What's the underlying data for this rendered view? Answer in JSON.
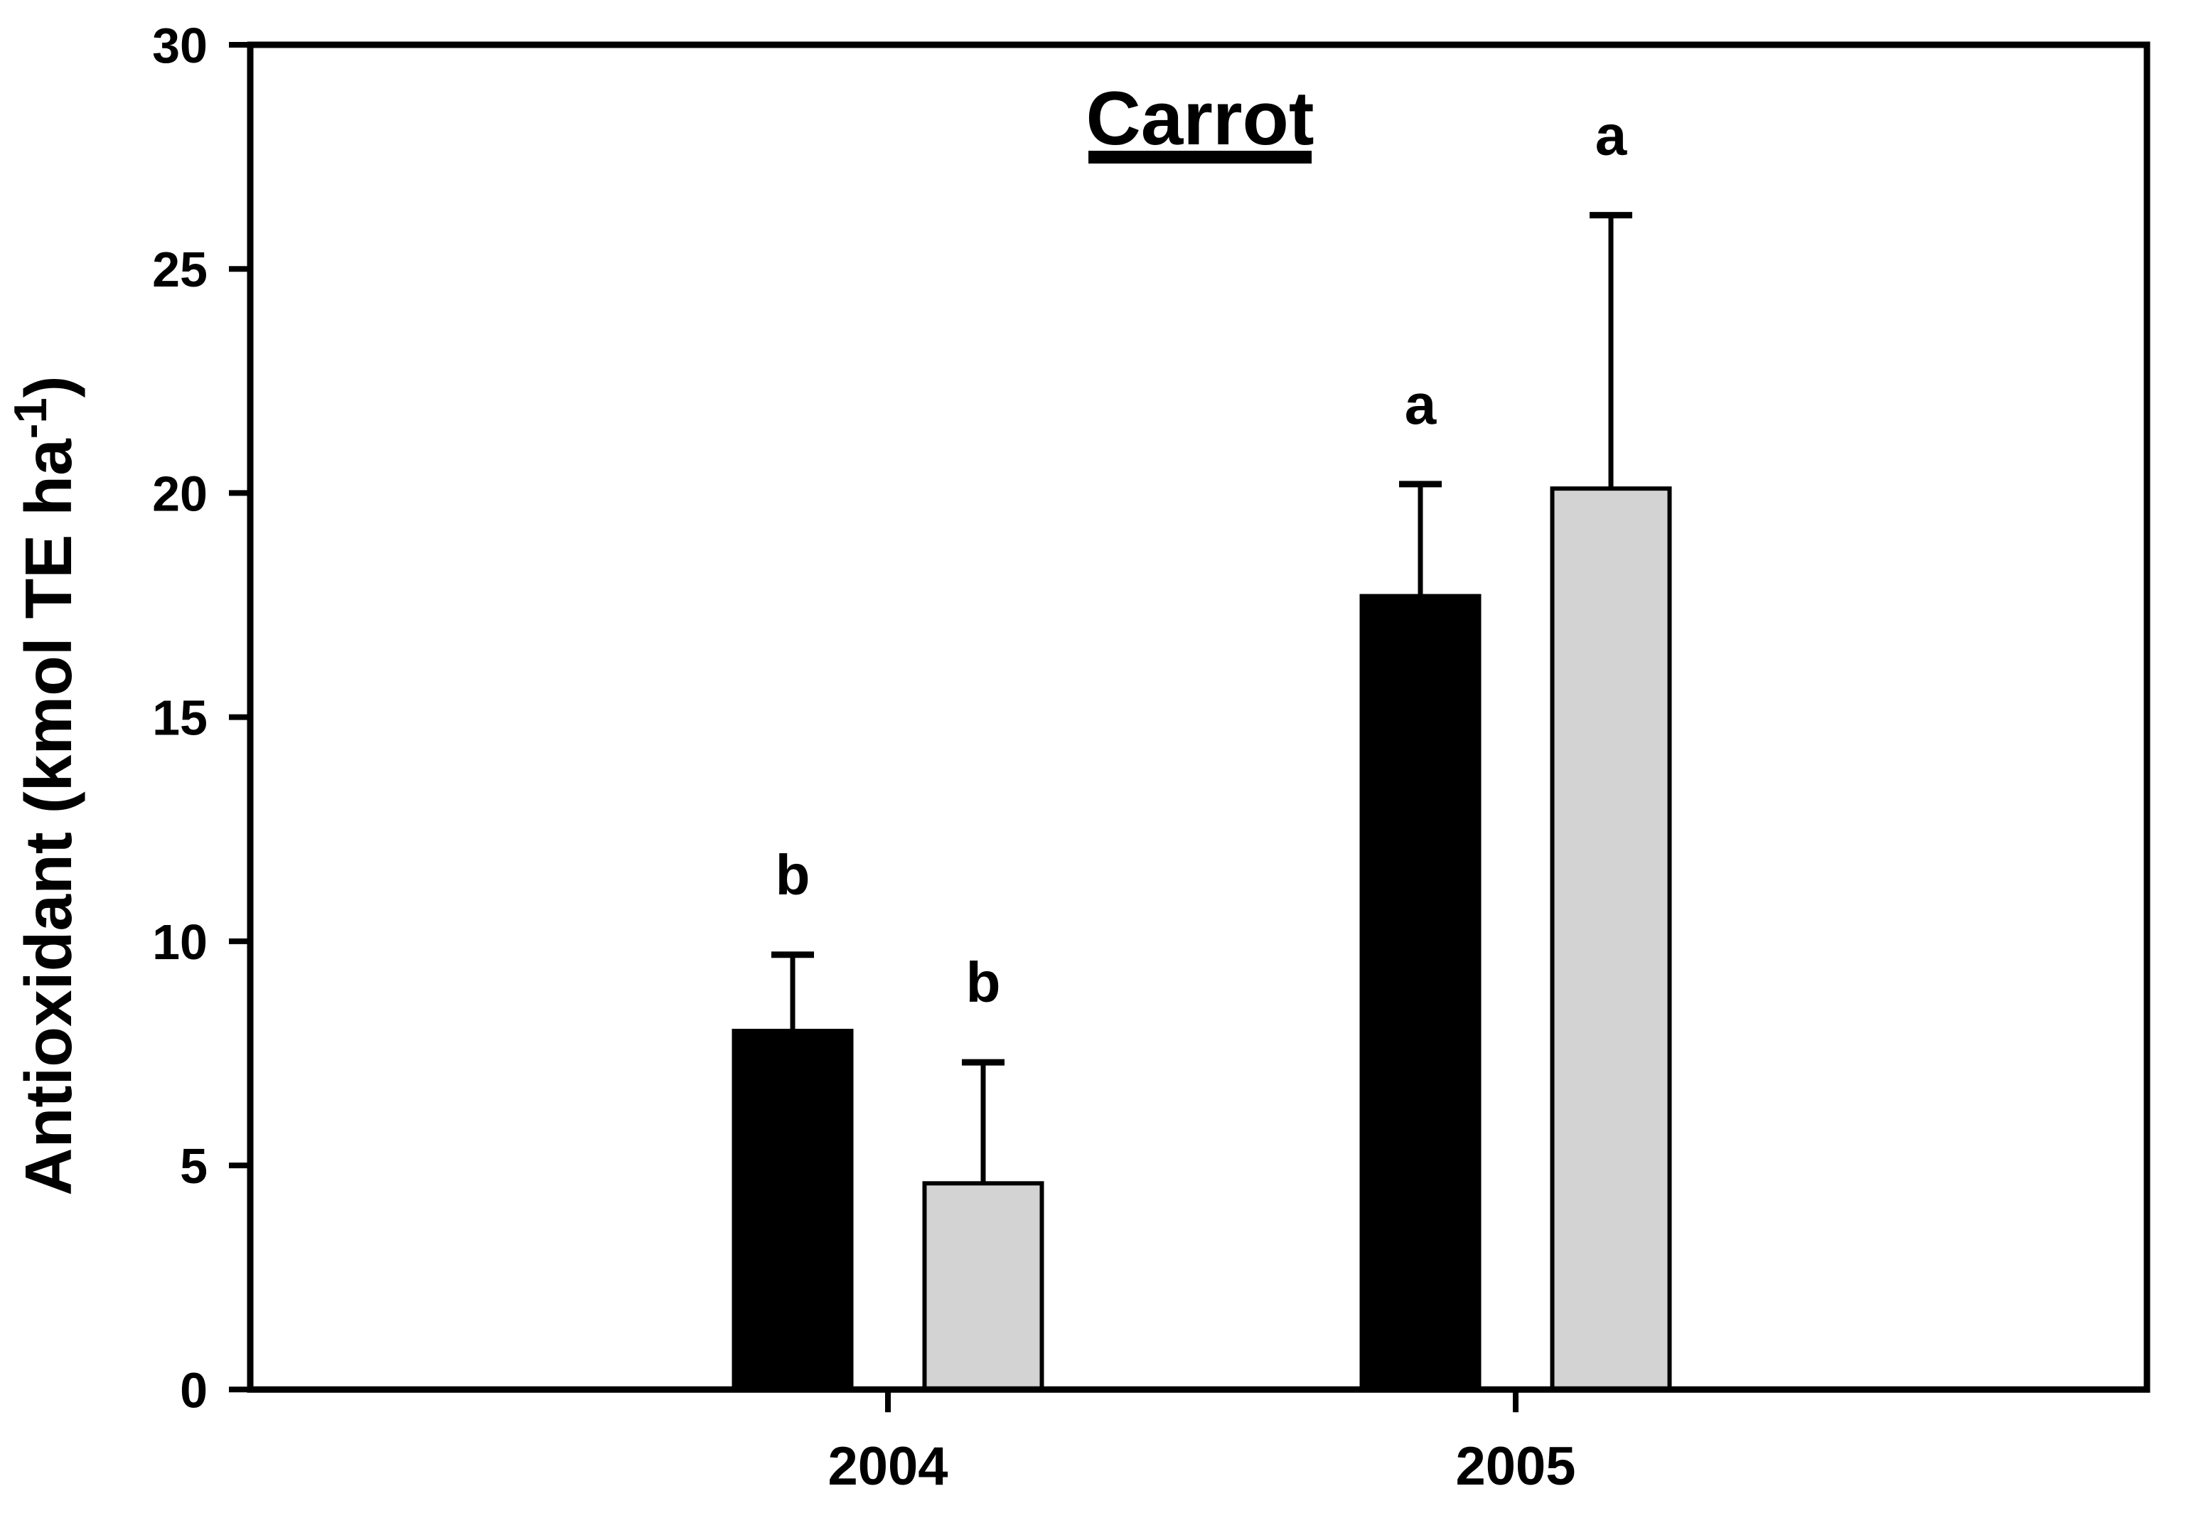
{
  "chart_data": {
    "type": "bar",
    "title": "Carrot",
    "ylabel": "Antioxidant (kmol TE ha⁻¹)",
    "ylabel_parts": {
      "pre": "Antioxidant (kmol TE ha",
      "sup": "-1",
      "post": ")"
    },
    "xlabel": "",
    "categories": [
      "2004",
      "2005"
    ],
    "series": [
      {
        "name": "black-bars",
        "color": "#000000",
        "values": [
          8.0,
          17.7
        ],
        "errors_plus": [
          1.7,
          2.5
        ],
        "sig_letters": [
          "b",
          "a"
        ]
      },
      {
        "name": "gray-bars",
        "color": "#d3d3d3",
        "values": [
          4.6,
          20.1
        ],
        "errors_plus": [
          2.7,
          6.1
        ],
        "sig_letters": [
          "b",
          "a"
        ]
      }
    ],
    "ylim": [
      0,
      30
    ],
    "yticks": [
      0,
      5,
      10,
      15,
      20,
      25,
      30
    ],
    "grid": "off",
    "legend": "none",
    "frame": "full-box",
    "colors": {
      "bar_black": "#000000",
      "bar_gray": "#d3d3d3",
      "axis": "#000000",
      "background": "#ffffff"
    }
  }
}
